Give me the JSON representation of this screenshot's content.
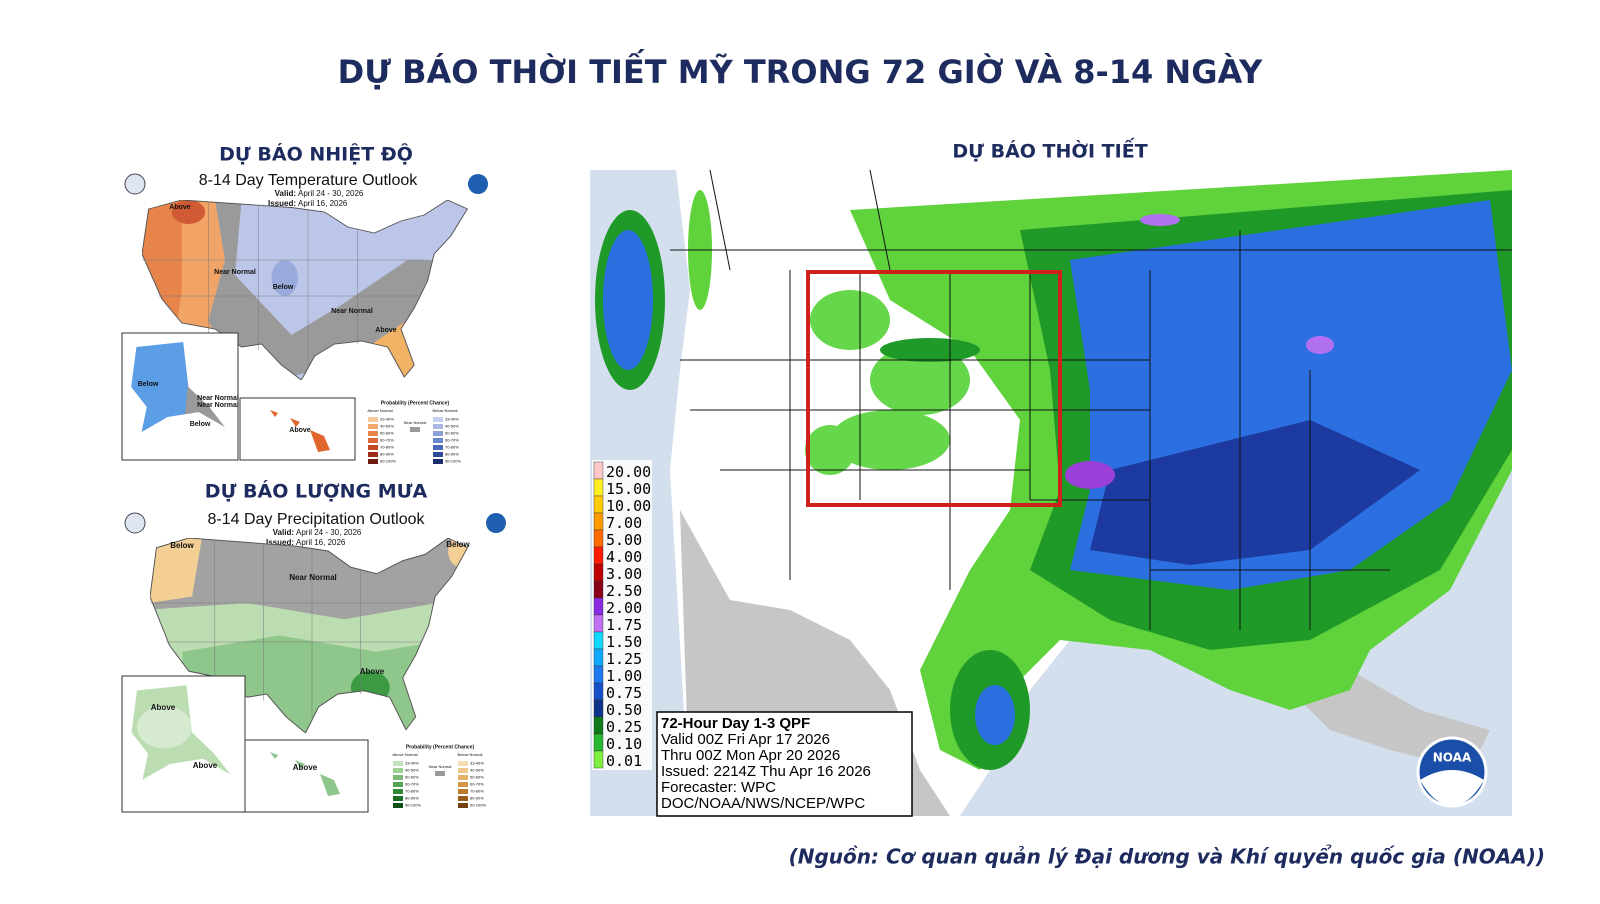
{
  "title": "DỰ BÁO THỜI TIẾT MỸ TRONG 72 GIỜ VÀ 8-14 NGÀY",
  "temperature": {
    "heading": "DỰ BÁO NHIỆT ĐỘ",
    "map_title": "8-14 Day Temperature Outlook",
    "valid": "Valid:",
    "valid_dates": "April 24 - 30, 2026",
    "issued": "Issued:",
    "issued_date": "April 16, 2026",
    "labels": [
      "Above",
      "Near Normal",
      "Below",
      "Near Normal",
      "Above",
      "Below",
      "Near Normal",
      "Near Normal",
      "Below",
      "Above"
    ],
    "legend": {
      "title": "Probability (Percent Chance)",
      "above": "Above Normal",
      "below": "Below Normal",
      "near": "Near Normal",
      "bins": [
        "33-40%",
        "40-50%",
        "50-60%",
        "60-70%",
        "70-80%",
        "80-90%",
        "90-100%"
      ],
      "above_colors": [
        "#f7c89a",
        "#f2a86a",
        "#e8864a",
        "#dd6a36",
        "#c44a24",
        "#9c2e16",
        "#6e1a0c"
      ],
      "below_colors": [
        "#c7d0ee",
        "#a9b8e4",
        "#8aa0da",
        "#6a86cc",
        "#4a68b8",
        "#2e4a98",
        "#1a2e70"
      ]
    }
  },
  "precipitation": {
    "heading": "DỰ BÁO LƯỢNG MƯA",
    "map_title": "8-14 Day Precipitation Outlook",
    "valid": "Valid:",
    "valid_dates": "April 24 - 30, 2026",
    "issued": "Issued:",
    "issued_date": "April 16, 2026",
    "labels": [
      "Below",
      "Near Normal",
      "Below",
      "Above",
      "Above",
      "Above",
      "Above"
    ],
    "legend": {
      "title": "Probability (Percent Chance)",
      "above": "Above Normal",
      "below": "Below Normal",
      "near": "Near Normal",
      "bins": [
        "33-40%",
        "40-50%",
        "50-60%",
        "60-70%",
        "70-80%",
        "80-90%",
        "90-100%"
      ],
      "above_colors": [
        "#c4e2bc",
        "#9fd096",
        "#7abd72",
        "#52a450",
        "#2e8a34",
        "#1a6e22",
        "#0c5014"
      ],
      "below_colors": [
        "#f5dcb0",
        "#f0c88a",
        "#e6b066",
        "#d59646",
        "#bc7a2e",
        "#9a5e1c",
        "#74420e"
      ]
    }
  },
  "qpf": {
    "heading": "DỰ BÁO THỜI TIẾT",
    "scale": [
      {
        "label": "20.00",
        "color": "#ffc8c8"
      },
      {
        "label": "15.00",
        "color": "#ffee22"
      },
      {
        "label": "10.00",
        "color": "#ffcc00"
      },
      {
        "label": "7.00",
        "color": "#ff9a00"
      },
      {
        "label": "5.00",
        "color": "#ff6a00"
      },
      {
        "label": "4.00",
        "color": "#ff1a00"
      },
      {
        "label": "3.00",
        "color": "#c00000"
      },
      {
        "label": "2.50",
        "color": "#8a0018"
      },
      {
        "label": "2.00",
        "color": "#8a2be2"
      },
      {
        "label": "1.75",
        "color": "#c070f0"
      },
      {
        "label": "1.50",
        "color": "#10d8ff"
      },
      {
        "label": "1.25",
        "color": "#10a8ff"
      },
      {
        "label": "1.00",
        "color": "#1e78f0"
      },
      {
        "label": "0.75",
        "color": "#1650c8"
      },
      {
        "label": "0.50",
        "color": "#0c3488"
      },
      {
        "label": "0.25",
        "color": "#0e7a18"
      },
      {
        "label": "0.10",
        "color": "#28b830"
      },
      {
        "label": "0.01",
        "color": "#80f040"
      }
    ],
    "box": [
      "72-Hour Day 1-3 QPF",
      "Valid 00Z Fri Apr 17 2026",
      "Thru 00Z Mon Apr 20 2026",
      "Issued: 2214Z Thu Apr 16 2026",
      "Forecaster: WPC",
      "DOC/NOAA/NWS/NCEP/WPC"
    ],
    "logo": "NOAA"
  },
  "source": "(Nguồn: Cơ quan quản lý Đại dương và Khí quyển quốc gia (NOAA))"
}
